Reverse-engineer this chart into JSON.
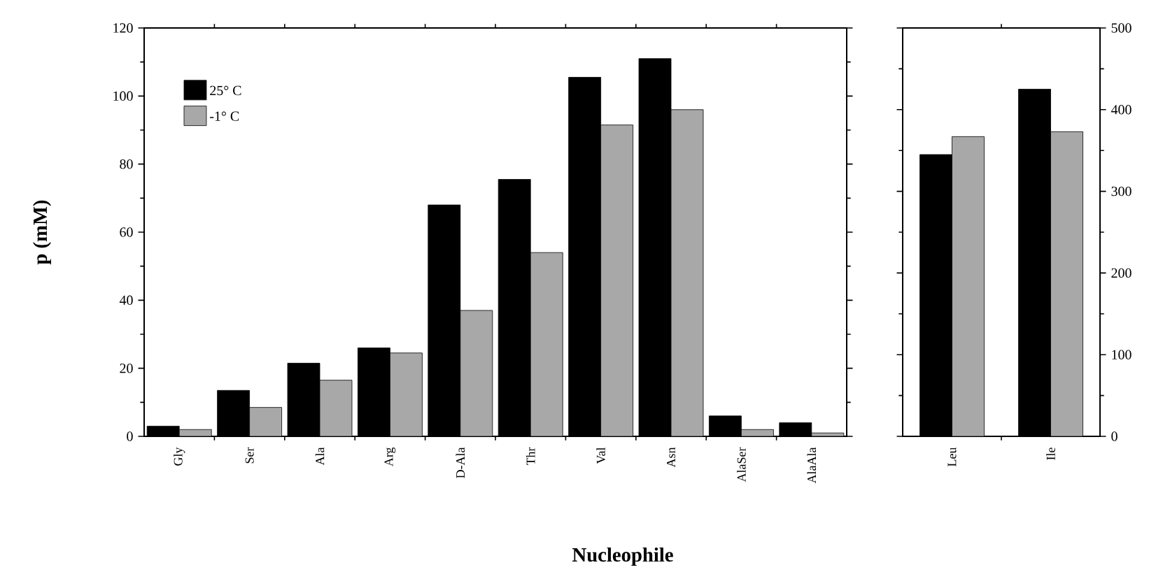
{
  "chart_data": [
    {
      "type": "bar",
      "ylabel": "p (mM)",
      "xlabel": "Nucleophile",
      "categories": [
        "Gly",
        "Ser",
        "Ala",
        "Arg",
        "D-Ala",
        "Thr",
        "Val",
        "Asn",
        "AlaSer",
        "AlaAla"
      ],
      "series": [
        {
          "name": "25° C",
          "color": "#000000",
          "values": [
            3,
            13.5,
            21.5,
            26,
            68,
            75.5,
            105.5,
            111,
            6,
            4
          ]
        },
        {
          "name": "-1° C",
          "color": "#a8a8a8",
          "values": [
            2,
            8.5,
            16.5,
            24.5,
            37,
            54,
            91.5,
            96,
            2,
            1
          ]
        }
      ],
      "ylim": [
        0,
        120
      ],
      "yticks": [
        0,
        20,
        40,
        60,
        80,
        100,
        120
      ],
      "legend": "top left",
      "grid": false
    },
    {
      "type": "bar",
      "categories": [
        "Leu",
        "Ile"
      ],
      "series": [
        {
          "color": "#000000",
          "axis": "y2",
          "values": [
            345,
            425
          ]
        },
        {
          "color": "#a8a8a8",
          "axis": "y2",
          "values": [
            367,
            373
          ]
        }
      ],
      "y2lim": [
        0,
        500
      ],
      "y2ticks": [
        0,
        100,
        200,
        300,
        400,
        500
      ],
      "grid": false
    }
  ]
}
